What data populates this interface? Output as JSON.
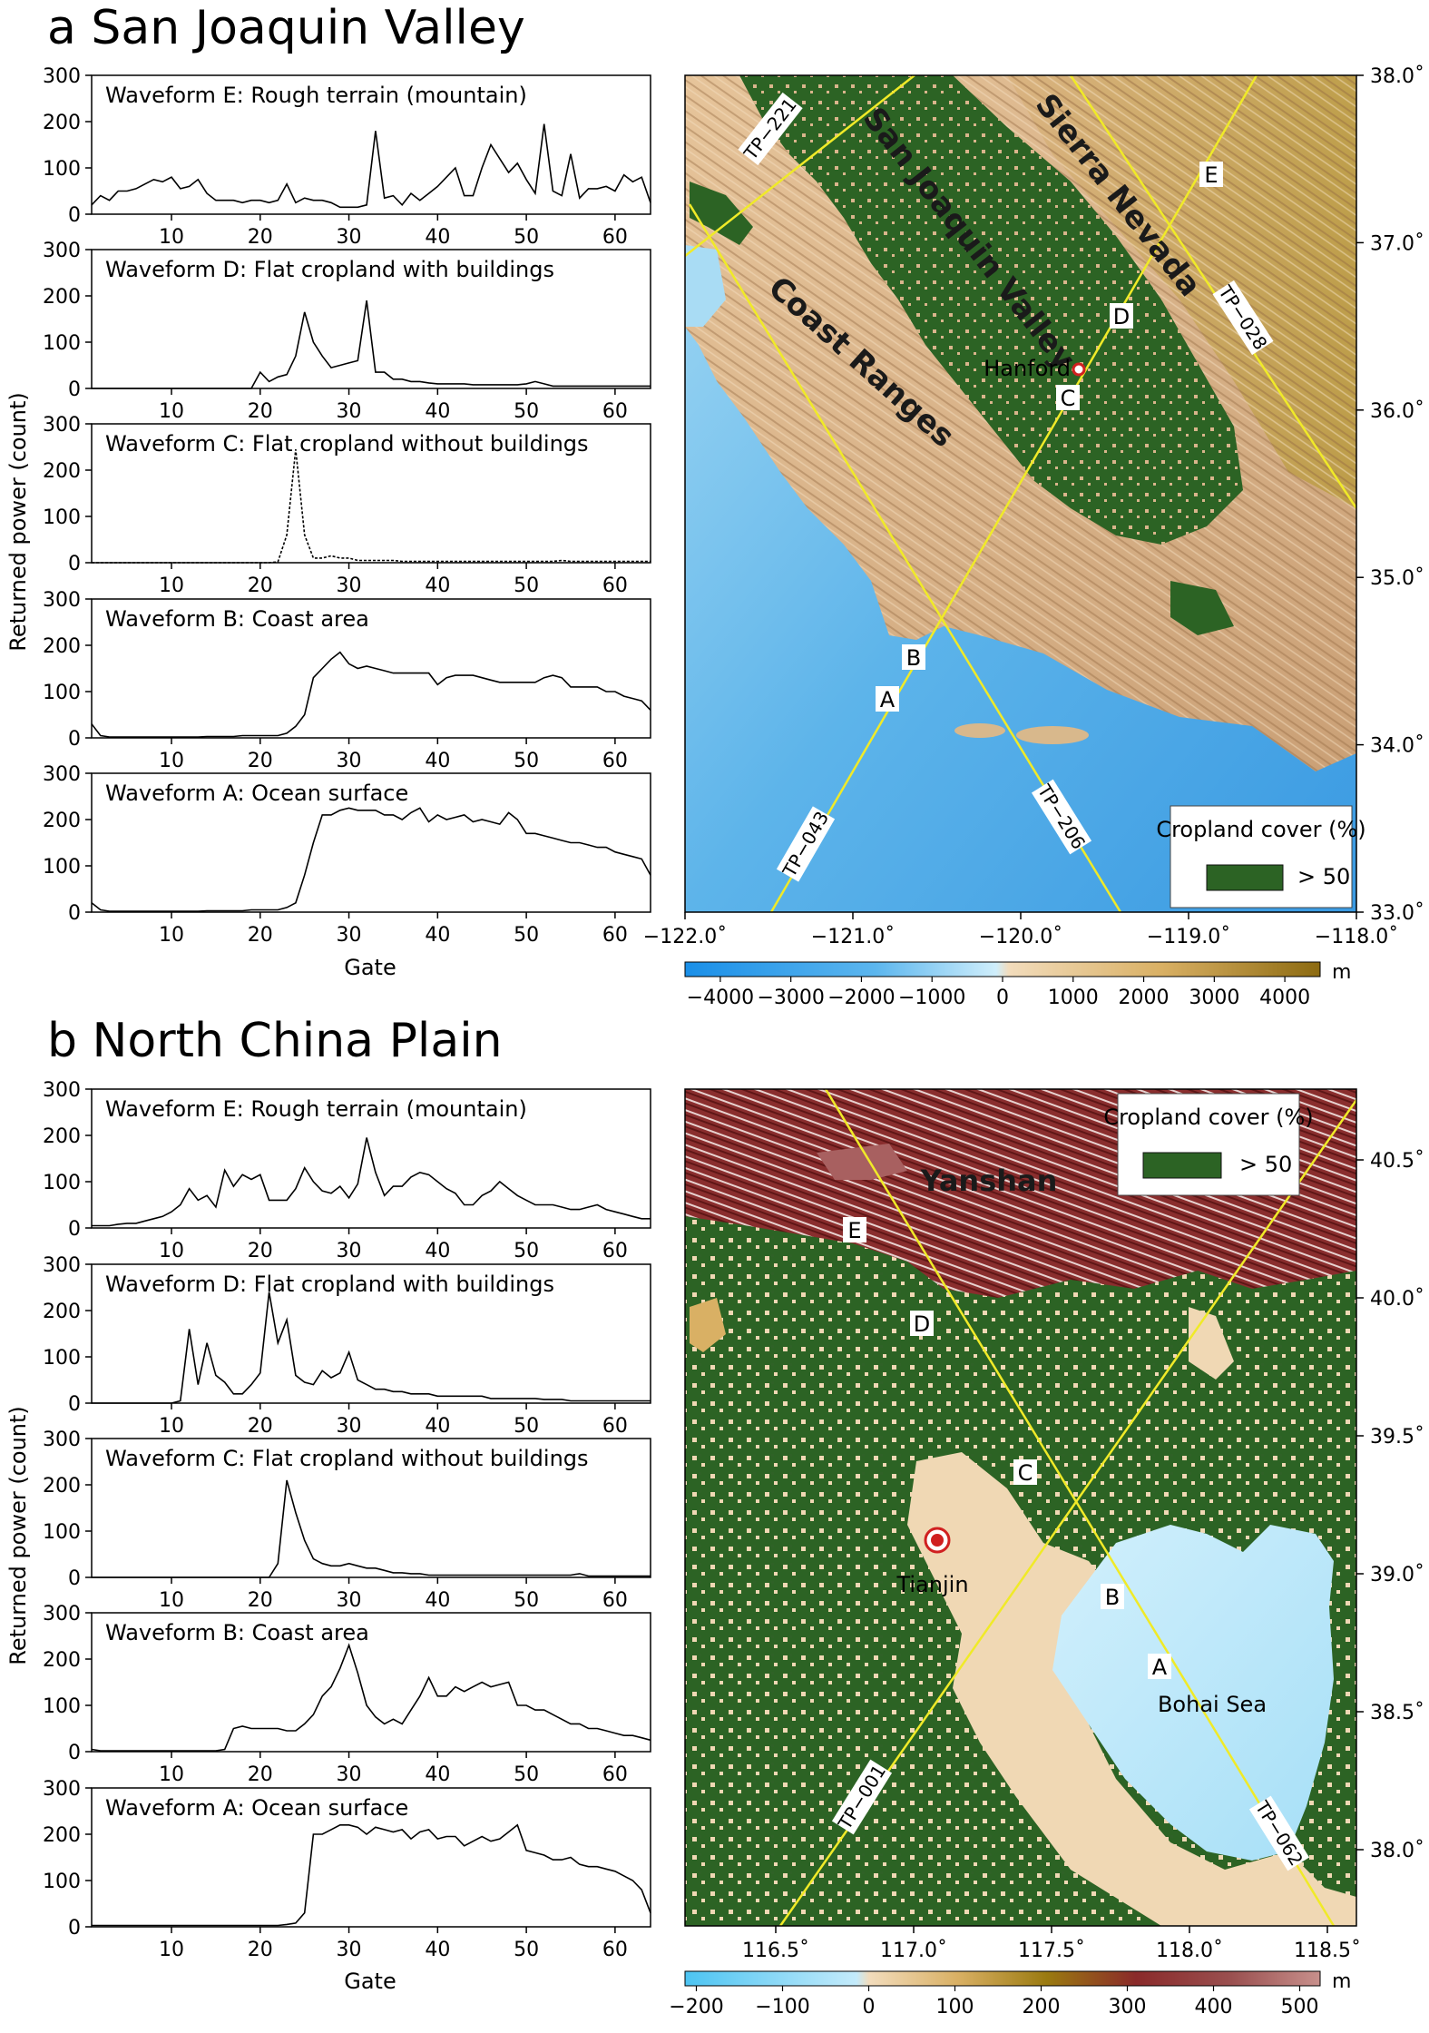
{
  "panel_a": {
    "title": "a San Joaquin Valley",
    "ylabel": "Returned power (count)",
    "xlabel": "Gate",
    "map": {
      "labels": {
        "sierra": "Sierra Nevada",
        "valley": "San Joaquin Valley",
        "coast": "Coast Ranges",
        "city": "Hanford"
      },
      "tracks": [
        "TP−221",
        "TP−028",
        "TP−043",
        "TP−206"
      ],
      "points": [
        "A",
        "B",
        "C",
        "D",
        "E"
      ],
      "lat_ticks": [
        "38.0˚",
        "37.0˚",
        "36.0˚",
        "35.0˚",
        "34.0˚",
        "33.0˚"
      ],
      "lon_ticks": [
        "−122.0˚",
        "−121.0˚",
        "−120.0˚",
        "−119.0˚",
        "−118.0˚"
      ],
      "legend_title": "Cropland cover (%)",
      "legend_item": "> 50",
      "colorbar_ticks": [
        "−4000",
        "−3000",
        "−2000",
        "−1000",
        "0",
        "1000",
        "2000",
        "3000",
        "4000"
      ],
      "colorbar_unit": "m"
    }
  },
  "panel_b": {
    "title": "b North China Plain",
    "ylabel": "Returned power (count)",
    "xlabel": "Gate",
    "map": {
      "labels": {
        "mountain": "Yanshan",
        "city": "Tianjin",
        "sea": "Bohai Sea"
      },
      "tracks": [
        "TP−001",
        "TP−062"
      ],
      "points": [
        "A",
        "B",
        "C",
        "D",
        "E"
      ],
      "lat_ticks": [
        "40.5˚",
        "40.0˚",
        "39.5˚",
        "39.0˚",
        "38.5˚",
        "38.0˚"
      ],
      "lon_ticks": [
        "116.5˚",
        "117.0˚",
        "117.5˚",
        "118.0˚",
        "118.5˚"
      ],
      "legend_title": "Cropland cover (%)",
      "legend_item": "> 50",
      "colorbar_ticks": [
        "−200",
        "−100",
        "0",
        "100",
        "200",
        "300",
        "400",
        "500"
      ],
      "colorbar_unit": "m"
    }
  },
  "chart_data": [
    {
      "type": "line",
      "panel": "a",
      "title": "Waveform E: Rough terrain (mountain)",
      "xlim": [
        1,
        64
      ],
      "ylim": [
        0,
        300
      ],
      "x_ticks": [
        10,
        20,
        30,
        40,
        50,
        60
      ],
      "y_ticks": [
        0,
        100,
        200,
        300
      ],
      "values": [
        20,
        40,
        30,
        50,
        50,
        55,
        65,
        75,
        70,
        80,
        55,
        60,
        75,
        45,
        30,
        30,
        30,
        25,
        30,
        30,
        25,
        30,
        65,
        25,
        35,
        30,
        30,
        25,
        15,
        15,
        15,
        20,
        180,
        35,
        40,
        20,
        45,
        30,
        45,
        60,
        80,
        100,
        40,
        40,
        100,
        150,
        120,
        90,
        110,
        75,
        45,
        195,
        50,
        40,
        130,
        35,
        55,
        55,
        60,
        50,
        85,
        70,
        80,
        25
      ],
      "dashed": false
    },
    {
      "type": "line",
      "panel": "a",
      "title": "Waveform D: Flat cropland with buildings",
      "xlim": [
        1,
        64
      ],
      "ylim": [
        0,
        300
      ],
      "x_ticks": [
        10,
        20,
        30,
        40,
        50,
        60
      ],
      "y_ticks": [
        0,
        100,
        200,
        300
      ],
      "values": [
        0,
        0,
        0,
        0,
        0,
        0,
        0,
        0,
        0,
        0,
        0,
        0,
        0,
        0,
        0,
        0,
        0,
        0,
        0,
        35,
        15,
        25,
        30,
        70,
        165,
        100,
        70,
        45,
        50,
        55,
        60,
        190,
        35,
        35,
        20,
        20,
        15,
        15,
        12,
        10,
        10,
        10,
        10,
        8,
        8,
        8,
        8,
        8,
        8,
        10,
        15,
        10,
        5,
        5,
        5,
        5,
        5,
        5,
        5,
        5,
        5,
        5,
        5,
        5
      ],
      "dashed": false
    },
    {
      "type": "line",
      "panel": "a",
      "title": "Waveform C: Flat cropland without buildings",
      "xlim": [
        1,
        64
      ],
      "ylim": [
        0,
        300
      ],
      "x_ticks": [
        10,
        20,
        30,
        40,
        50,
        60
      ],
      "y_ticks": [
        0,
        100,
        200,
        300
      ],
      "values": [
        0,
        0,
        0,
        0,
        0,
        0,
        0,
        0,
        0,
        0,
        0,
        0,
        0,
        0,
        0,
        0,
        0,
        0,
        0,
        0,
        0,
        2,
        60,
        245,
        60,
        10,
        10,
        15,
        10,
        10,
        5,
        5,
        5,
        5,
        5,
        3,
        3,
        3,
        3,
        3,
        3,
        3,
        3,
        3,
        3,
        3,
        3,
        3,
        3,
        3,
        3,
        3,
        3,
        5,
        3,
        3,
        3,
        3,
        3,
        3,
        3,
        3,
        3,
        3
      ],
      "dashed": true
    },
    {
      "type": "line",
      "panel": "a",
      "title": "Waveform B: Coast area",
      "xlim": [
        1,
        64
      ],
      "ylim": [
        0,
        300
      ],
      "x_ticks": [
        10,
        20,
        30,
        40,
        50,
        60
      ],
      "y_ticks": [
        0,
        100,
        200,
        300
      ],
      "values": [
        30,
        5,
        2,
        2,
        2,
        2,
        2,
        2,
        2,
        2,
        2,
        2,
        2,
        3,
        3,
        3,
        3,
        5,
        5,
        5,
        5,
        5,
        10,
        25,
        50,
        130,
        150,
        170,
        185,
        160,
        150,
        155,
        150,
        145,
        140,
        140,
        140,
        140,
        140,
        115,
        130,
        135,
        135,
        135,
        130,
        125,
        120,
        120,
        120,
        120,
        120,
        130,
        135,
        130,
        110,
        110,
        110,
        110,
        100,
        100,
        90,
        85,
        80,
        60
      ],
      "dashed": false
    },
    {
      "type": "line",
      "panel": "a",
      "title": "Waveform A: Ocean surface",
      "xlim": [
        1,
        64
      ],
      "ylim": [
        0,
        300
      ],
      "x_ticks": [
        10,
        20,
        30,
        40,
        50,
        60
      ],
      "y_ticks": [
        0,
        100,
        200,
        300
      ],
      "values": [
        20,
        5,
        2,
        2,
        2,
        2,
        2,
        2,
        2,
        2,
        2,
        2,
        2,
        3,
        3,
        3,
        3,
        3,
        5,
        5,
        5,
        5,
        10,
        20,
        80,
        150,
        210,
        210,
        220,
        225,
        220,
        220,
        220,
        210,
        210,
        200,
        215,
        225,
        195,
        210,
        200,
        205,
        210,
        195,
        200,
        195,
        190,
        215,
        200,
        170,
        170,
        165,
        160,
        155,
        150,
        150,
        145,
        140,
        140,
        130,
        125,
        120,
        115,
        80
      ],
      "dashed": false
    },
    {
      "type": "line",
      "panel": "b",
      "title": "Waveform E: Rough terrain (mountain)",
      "xlim": [
        1,
        64
      ],
      "ylim": [
        0,
        300
      ],
      "x_ticks": [
        10,
        20,
        30,
        40,
        50,
        60
      ],
      "y_ticks": [
        0,
        100,
        200,
        300
      ],
      "values": [
        5,
        5,
        5,
        8,
        10,
        10,
        15,
        20,
        25,
        35,
        50,
        85,
        60,
        70,
        45,
        125,
        90,
        115,
        105,
        115,
        60,
        60,
        60,
        85,
        130,
        100,
        80,
        75,
        90,
        65,
        95,
        195,
        120,
        70,
        90,
        90,
        110,
        120,
        115,
        100,
        85,
        75,
        50,
        50,
        70,
        80,
        100,
        85,
        70,
        60,
        50,
        50,
        50,
        45,
        40,
        40,
        45,
        50,
        40,
        35,
        30,
        25,
        20,
        20
      ],
      "dashed": false
    },
    {
      "type": "line",
      "panel": "b",
      "title": "Waveform D: Flat cropland with buildings",
      "xlim": [
        1,
        64
      ],
      "ylim": [
        0,
        300
      ],
      "x_ticks": [
        10,
        20,
        30,
        40,
        50,
        60
      ],
      "y_ticks": [
        0,
        100,
        200,
        300
      ],
      "values": [
        0,
        0,
        0,
        0,
        0,
        0,
        0,
        0,
        0,
        0,
        5,
        160,
        40,
        130,
        60,
        45,
        20,
        20,
        40,
        65,
        240,
        130,
        180,
        60,
        45,
        40,
        70,
        55,
        65,
        110,
        50,
        40,
        30,
        30,
        25,
        25,
        20,
        20,
        20,
        15,
        15,
        15,
        15,
        15,
        15,
        10,
        10,
        10,
        10,
        10,
        10,
        8,
        8,
        8,
        5,
        5,
        5,
        5,
        5,
        5,
        5,
        5,
        5,
        5
      ],
      "dashed": false
    },
    {
      "type": "line",
      "panel": "b",
      "title": "Waveform C: Flat cropland without buildings",
      "xlim": [
        1,
        64
      ],
      "ylim": [
        0,
        300
      ],
      "x_ticks": [
        10,
        20,
        30,
        40,
        50,
        60
      ],
      "y_ticks": [
        0,
        100,
        200,
        300
      ],
      "values": [
        0,
        0,
        0,
        0,
        0,
        0,
        0,
        0,
        0,
        0,
        0,
        0,
        0,
        0,
        0,
        0,
        0,
        0,
        0,
        0,
        0,
        30,
        210,
        140,
        80,
        40,
        30,
        25,
        25,
        30,
        25,
        20,
        20,
        15,
        10,
        10,
        8,
        8,
        5,
        5,
        5,
        5,
        5,
        5,
        5,
        5,
        5,
        5,
        5,
        5,
        5,
        5,
        5,
        5,
        5,
        8,
        3,
        3,
        3,
        3,
        3,
        3,
        3,
        3
      ],
      "dashed": false
    },
    {
      "type": "line",
      "panel": "b",
      "title": "Waveform B: Coast area",
      "xlim": [
        1,
        64
      ],
      "ylim": [
        0,
        300
      ],
      "x_ticks": [
        10,
        20,
        30,
        40,
        50,
        60
      ],
      "y_ticks": [
        0,
        100,
        200,
        300
      ],
      "values": [
        5,
        2,
        2,
        2,
        2,
        2,
        2,
        2,
        2,
        2,
        2,
        2,
        2,
        2,
        2,
        5,
        50,
        55,
        50,
        50,
        50,
        50,
        45,
        45,
        60,
        80,
        120,
        140,
        180,
        230,
        170,
        100,
        75,
        60,
        70,
        60,
        90,
        120,
        160,
        120,
        120,
        140,
        130,
        140,
        150,
        140,
        145,
        150,
        100,
        100,
        90,
        90,
        80,
        70,
        60,
        60,
        50,
        50,
        45,
        40,
        35,
        35,
        30,
        25
      ],
      "dashed": false
    },
    {
      "type": "line",
      "panel": "b",
      "title": "Waveform A: Ocean surface",
      "xlim": [
        1,
        64
      ],
      "ylim": [
        0,
        300
      ],
      "x_ticks": [
        10,
        20,
        30,
        40,
        50,
        60
      ],
      "y_ticks": [
        0,
        100,
        200,
        300
      ],
      "values": [
        3,
        3,
        3,
        3,
        3,
        3,
        3,
        3,
        3,
        3,
        3,
        3,
        3,
        3,
        3,
        3,
        3,
        3,
        3,
        3,
        3,
        3,
        5,
        8,
        30,
        200,
        200,
        210,
        220,
        220,
        215,
        200,
        215,
        210,
        205,
        210,
        190,
        205,
        210,
        190,
        195,
        195,
        175,
        185,
        195,
        185,
        190,
        205,
        220,
        165,
        160,
        155,
        145,
        145,
        150,
        135,
        130,
        130,
        125,
        120,
        110,
        100,
        80,
        30
      ],
      "dashed": false
    }
  ]
}
